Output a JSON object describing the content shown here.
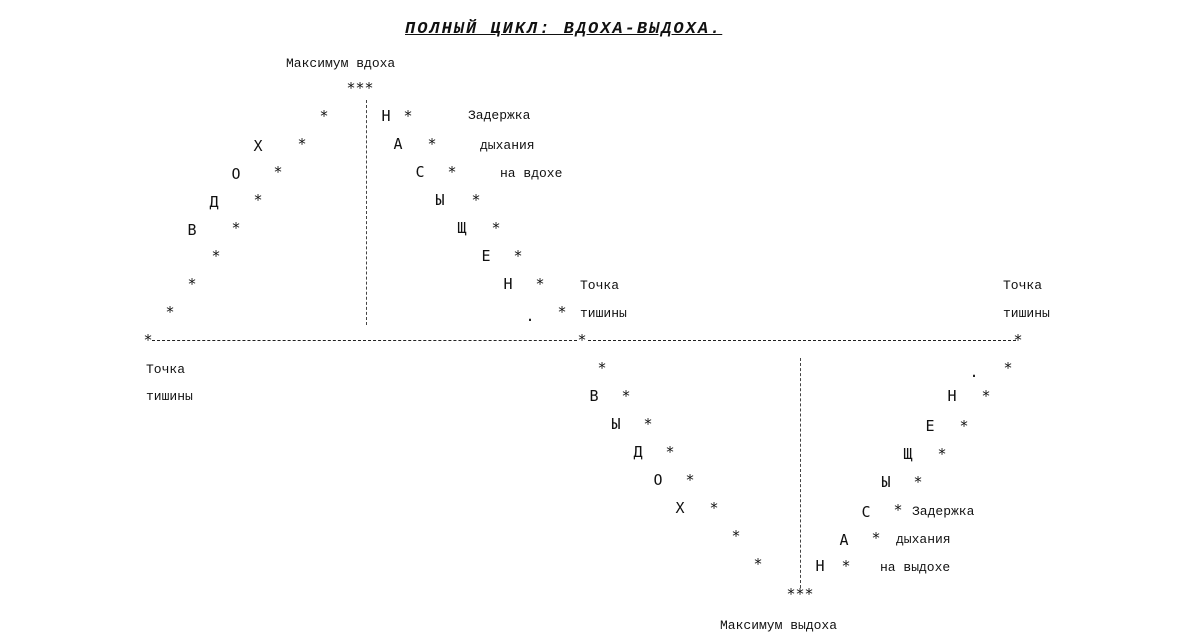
{
  "title": "ПОЛНЫЙ ЦИКЛ: ВДОХА-ВЫДОХА.",
  "labels": {
    "max_inhale": "Максимум вдоха",
    "max_exhale": "Максимум выдоха",
    "silence_line1": "Точка",
    "silence_line2": "тишины",
    "hold_line1": "Задержка",
    "hold_line2": "дыхания",
    "hold_inhale_line3": "на вдохе",
    "hold_exhale_line3": "на выдохе"
  },
  "words": {
    "inhale": [
      "В",
      "Д",
      "О",
      "Х"
    ],
    "holding": [
      "Н",
      "А",
      "С",
      "Ы",
      "Щ",
      "Е",
      "Н",
      "."
    ],
    "exhale": [
      "В",
      "Ы",
      "Д",
      "О",
      "Х"
    ],
    "emptying": [
      "Н",
      "А",
      "С",
      "Ы",
      "Щ",
      "Е",
      "Н",
      "."
    ]
  },
  "symbols": {
    "star": "*",
    "peak": "***"
  },
  "colors": {
    "ink": "#111111",
    "background": "#ffffff"
  }
}
